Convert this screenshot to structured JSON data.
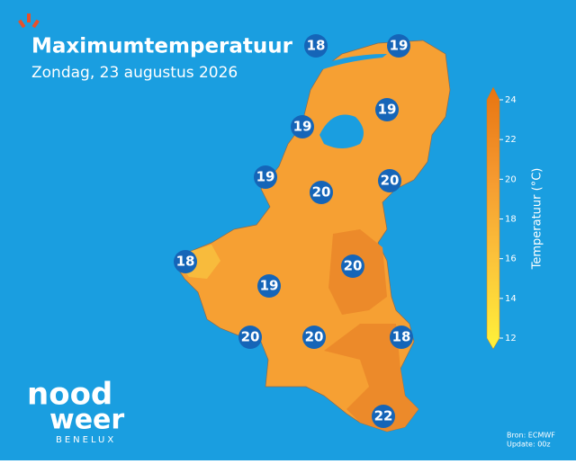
{
  "header": {
    "title": "Maximumtemperatuur",
    "subtitle": "Zondag, 23 augustus 2026"
  },
  "stations": [
    {
      "value": "18"
    },
    {
      "value": "19"
    },
    {
      "value": "19"
    },
    {
      "value": "19"
    },
    {
      "value": "19"
    },
    {
      "value": "20"
    },
    {
      "value": "20"
    },
    {
      "value": "18"
    },
    {
      "value": "20"
    },
    {
      "value": "19"
    },
    {
      "value": "20"
    },
    {
      "value": "20"
    },
    {
      "value": "18"
    },
    {
      "value": "22"
    }
  ],
  "colorbar": {
    "label": "Temperatuur (°C)",
    "lim": [
      12,
      24
    ],
    "ticks": [
      12,
      14,
      16,
      18,
      20,
      22,
      24
    ]
  },
  "logo": {
    "line1": "nood",
    "line2": "weer",
    "line3": "BENELUX"
  },
  "footer": {
    "source": "Bron: ECMWF",
    "update": "Update: 00z"
  }
}
